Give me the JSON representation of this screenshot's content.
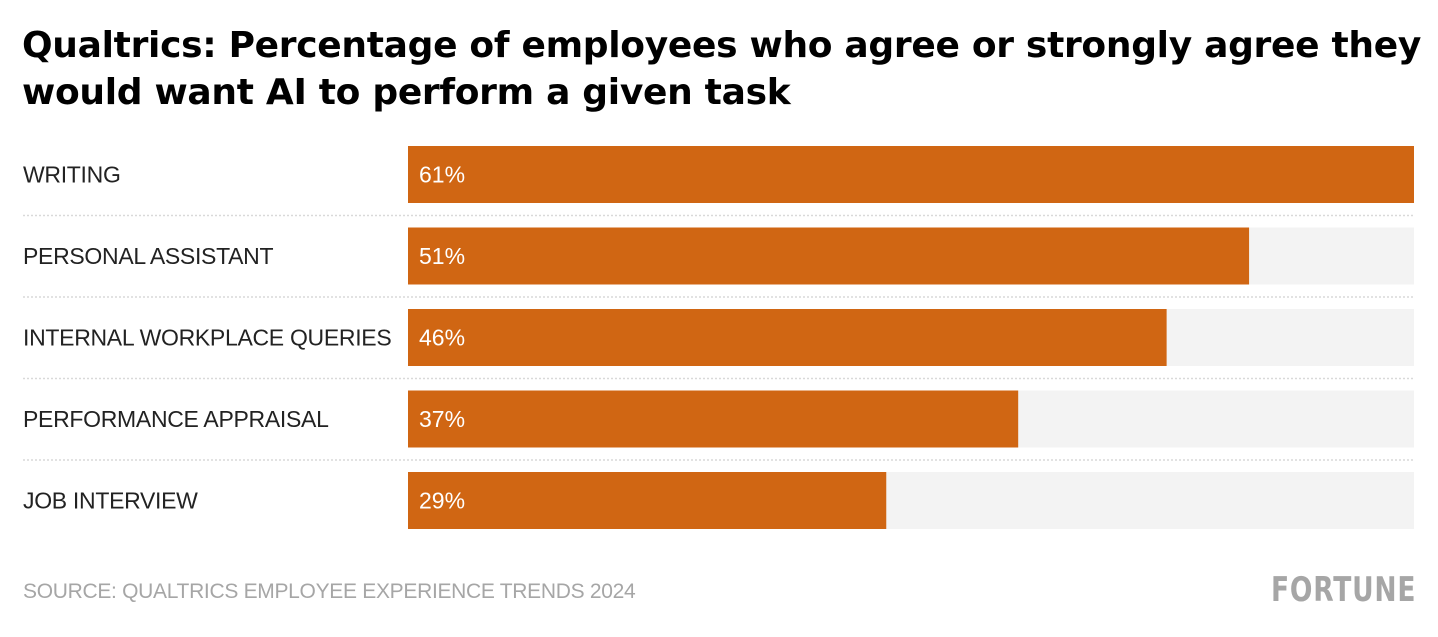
{
  "header": {
    "title": "Qualtrics: Percentage of employees who agree or strongly agree they would want AI to perform a given task"
  },
  "footer": {
    "source": "SOURCE: QUALTRICS EMPLOYEE EXPERIENCE TRENDS 2024",
    "logo": "FORTUNE"
  },
  "colors": {
    "bar": "#d06613",
    "track": "#f3f3f3",
    "separator": "#d9d9d9",
    "label": "#222222",
    "value_label": "#ffffff"
  },
  "chart_data": {
    "type": "bar",
    "orientation": "horizontal",
    "title": "Qualtrics: Percentage of employees who agree or strongly agree they would want AI to perform a given task",
    "categories": [
      "WRITING",
      "PERSONAL ASSISTANT",
      "INTERNAL WORKPLACE QUERIES",
      "PERFORMANCE APPRAISAL",
      "JOB INTERVIEW"
    ],
    "values": [
      61,
      51,
      46,
      37,
      29
    ],
    "value_labels": [
      "61%",
      "51%",
      "46%",
      "37%",
      "29%"
    ],
    "unit": "%",
    "xlim": [
      0,
      61
    ],
    "xlabel": "",
    "ylabel": "",
    "grid": false,
    "legend": "none",
    "source": "SOURCE: QUALTRICS EMPLOYEE EXPERIENCE TRENDS 2024"
  }
}
